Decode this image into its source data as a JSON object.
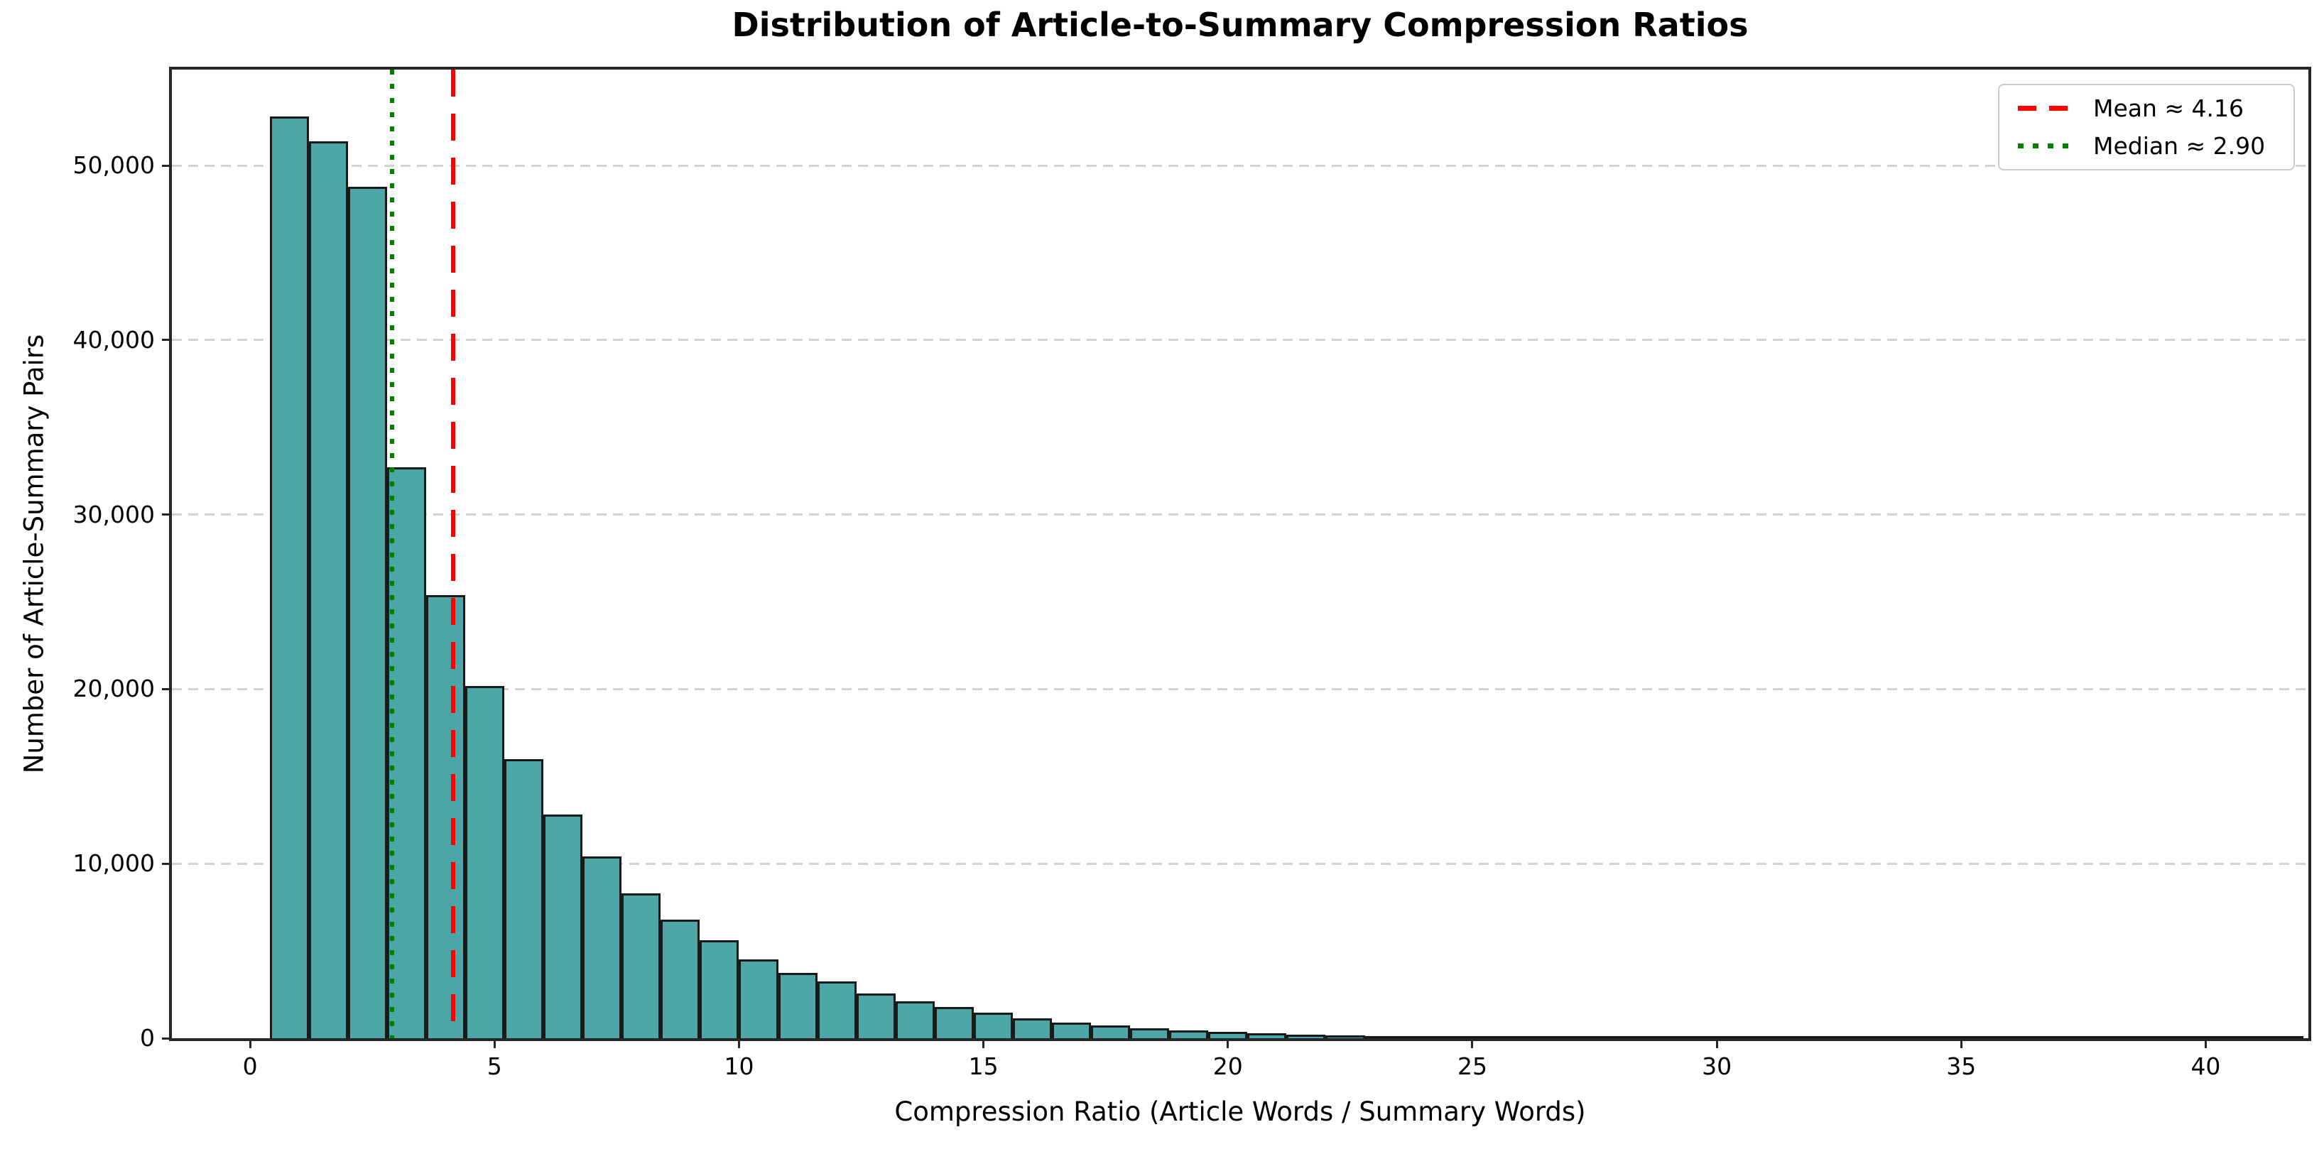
{
  "chart_data": {
    "type": "bar",
    "subtype": "histogram",
    "title": "Distribution of Article-to-Summary Compression Ratios",
    "xlabel": "Compression Ratio (Article Words / Summary Words)",
    "ylabel": "Number of Article-Summary Pairs",
    "bin_start": 0.4,
    "bin_width": 0.8,
    "values": [
      52800,
      51400,
      48800,
      32700,
      25400,
      20200,
      16000,
      12800,
      10400,
      8300,
      6800,
      5600,
      4500,
      3750,
      3250,
      2550,
      2100,
      1800,
      1450,
      1150,
      900,
      720,
      560,
      440,
      350,
      270,
      210,
      160,
      125,
      95,
      75,
      58,
      45,
      35,
      27,
      21,
      16,
      12,
      9,
      7,
      5,
      4,
      3,
      3,
      2,
      2,
      1,
      1,
      1,
      1,
      0,
      1
    ],
    "xlim": [
      -1.6,
      42.1
    ],
    "ylim": [
      0,
      55500
    ],
    "xticks": {
      "values": [
        0,
        5,
        10,
        15,
        20,
        25,
        30,
        35,
        40
      ],
      "labels": [
        "0",
        "5",
        "10",
        "15",
        "20",
        "25",
        "30",
        "35",
        "40"
      ]
    },
    "yticks": {
      "values": [
        0,
        10000,
        20000,
        30000,
        40000,
        50000
      ],
      "labels": [
        "0",
        "10,000",
        "20,000",
        "30,000",
        "40,000",
        "50,000"
      ]
    },
    "grid": "horizontal-dashed",
    "legend_position": "upper-right",
    "mean": {
      "value": 4.16,
      "label": "Mean ≈ 4.16",
      "color": "#FF0000",
      "style": "dashed"
    },
    "median": {
      "value": 2.9,
      "label": "Median ≈ 2.90",
      "color": "#008000",
      "style": "dotted"
    },
    "colors": {
      "bar_fill": "#4CA6A6",
      "bar_edge": "#1A1A1A",
      "grid": "#D3D3D3",
      "spine": "#262626",
      "text": "#000000"
    }
  }
}
